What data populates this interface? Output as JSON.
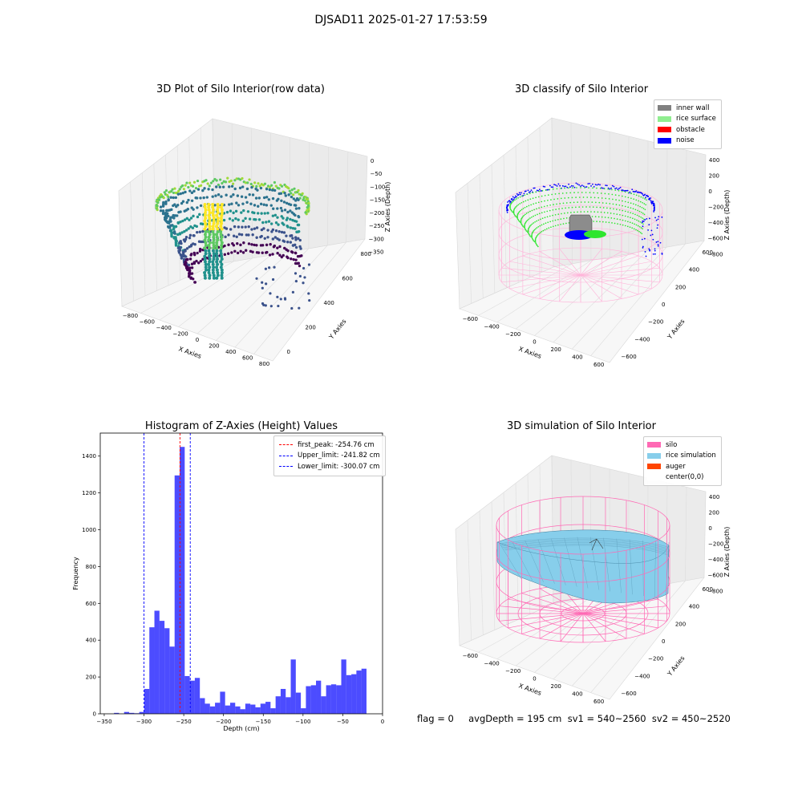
{
  "suptitle": "DJSAD11 2025-01-27 17:53:59",
  "footer": "flag = 0     avgDepth = 195 cm  sv1 = 540~2560  sv2 = 450~2520",
  "chart_data": [
    {
      "type": "scatter",
      "title": "3D Plot of Silo Interior(row data)",
      "xlabel": "X Axies",
      "ylabel": "Y Axies",
      "zlabel": "Z Axies (Depth)",
      "x_ticks": [
        "−800",
        "−600",
        "−400",
        "−200",
        "0",
        "200",
        "400",
        "600",
        "800"
      ],
      "y_ticks": [
        "0",
        "200",
        "400",
        "600",
        "800"
      ],
      "z_ticks": [
        "0",
        "−50",
        "−100",
        "−150",
        "−200",
        "−250",
        "−300",
        "−350"
      ],
      "colormap": "viridis"
    },
    {
      "type": "scatter",
      "title": "3D classify of Silo Interior",
      "xlabel": "X Axies",
      "ylabel": "Y Axies",
      "zlabel": "Z Axies (Depth)",
      "x_ticks": [
        "−600",
        "−400",
        "−200",
        "0",
        "200",
        "400",
        "600"
      ],
      "y_ticks": [
        "−600",
        "−400",
        "−200",
        "0",
        "200",
        "400",
        "600"
      ],
      "z_ticks": [
        "400",
        "200",
        "0",
        "−200",
        "−400",
        "−600",
        "−800"
      ],
      "legend_position": "top-right",
      "legend": [
        {
          "label": "inner wall",
          "color": "#808080"
        },
        {
          "label": "rice surface",
          "color": "#90ee90"
        },
        {
          "label": "obstacle",
          "color": "#ff0000"
        },
        {
          "label": "noise",
          "color": "#0000ff"
        }
      ]
    },
    {
      "type": "bar",
      "title": "Histogram of Z-Axies (Height) Values",
      "xlabel": "Depth (cm)",
      "ylabel": "Frequency",
      "xlim": [
        -355,
        0
      ],
      "ylim": [
        0,
        1525
      ],
      "x_ticks": [
        -350,
        -300,
        -250,
        -200,
        -150,
        -100,
        -50,
        0
      ],
      "y_ticks": [
        0,
        200,
        400,
        600,
        800,
        1000,
        1200,
        1400
      ],
      "bar_color": "#0000ff",
      "bin_width": 6.35,
      "bins_left": [
        -337.7,
        -331.35,
        -325,
        -318.65,
        -312.3,
        -305.95,
        -299.6,
        -293.25,
        -286.9,
        -280.55,
        -274.2,
        -267.85,
        -261.5,
        -255.15,
        -248.8,
        -242.45,
        -236.1,
        -229.75,
        -223.4,
        -217.05,
        -210.7,
        -204.35,
        -198,
        -191.65,
        -185.3,
        -178.95,
        -172.6,
        -166.25,
        -159.9,
        -153.55,
        -147.2,
        -140.85,
        -134.5,
        -128.15,
        -121.8,
        -115.45,
        -109.1,
        -102.75,
        -96.4,
        -90.05,
        -83.7,
        -77.35,
        -71,
        -64.65,
        -58.3,
        -51.95,
        -45.6,
        -39.25,
        -32.9,
        -26.55,
        -20.2
      ],
      "values": [
        5,
        0,
        10,
        5,
        3,
        10,
        135,
        470,
        560,
        505,
        465,
        365,
        1295,
        1450,
        205,
        180,
        195,
        85,
        55,
        40,
        60,
        120,
        45,
        60,
        40,
        25,
        55,
        50,
        35,
        55,
        65,
        30,
        95,
        135,
        90,
        295,
        115,
        30,
        150,
        155,
        180,
        95,
        155,
        160,
        155,
        295,
        210,
        215,
        235,
        245,
        0
      ],
      "legend_position": "top-right",
      "lines": [
        {
          "label": "first_peak: -254.76 cm",
          "x": -254.76,
          "color": "#ff0000"
        },
        {
          "label": "Upper_limit: -241.82 cm",
          "x": -241.82,
          "color": "#0000ff"
        },
        {
          "label": "Lower_limit: -300.07 cm",
          "x": -300.07,
          "color": "#0000ff"
        }
      ]
    },
    {
      "type": "surface",
      "title": "3D simulation of Silo Interior",
      "xlabel": "X Axies",
      "ylabel": "Y Axies",
      "zlabel": "Z Axies (Depth)",
      "x_ticks": [
        "−600",
        "−400",
        "−200",
        "0",
        "200",
        "400",
        "600"
      ],
      "y_ticks": [
        "−600",
        "−400",
        "−200",
        "0",
        "200",
        "400",
        "600"
      ],
      "z_ticks": [
        "400",
        "200",
        "0",
        "−200",
        "−400",
        "−600",
        "−800"
      ],
      "legend_position": "top-right",
      "legend": [
        {
          "label": "silo",
          "color": "#ff69b4"
        },
        {
          "label": "rice simulation",
          "color": "#87ceeb"
        },
        {
          "label": "auger",
          "color": "#ff4500"
        },
        {
          "label": "center(0,0)",
          "color": "#ffffff"
        }
      ]
    }
  ]
}
